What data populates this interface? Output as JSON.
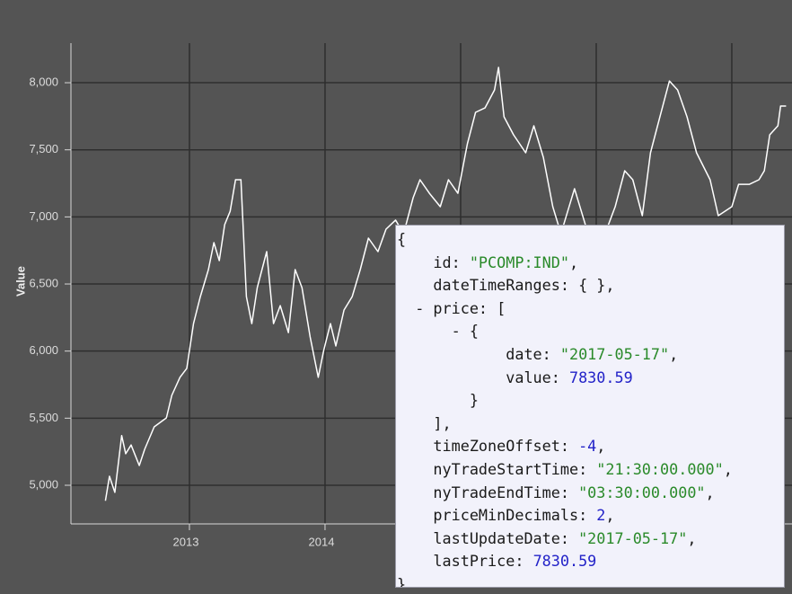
{
  "chart_data": {
    "type": "line",
    "y_label": "Value",
    "x": [
      2012.38,
      2012.41,
      2012.45,
      2012.5,
      2012.53,
      2012.57,
      2012.63,
      2012.67,
      2012.74,
      2012.83,
      2012.87,
      2012.93,
      2012.98,
      2013.03,
      2013.08,
      2013.14,
      2013.18,
      2013.22,
      2013.26,
      2013.3,
      2013.34,
      2013.38,
      2013.42,
      2013.46,
      2013.5,
      2013.57,
      2013.62,
      2013.67,
      2013.73,
      2013.78,
      2013.83,
      2013.89,
      2013.95,
      2013.99,
      2014.04,
      2014.08,
      2014.14,
      2014.2,
      2014.26,
      2014.32,
      2014.39,
      2014.45,
      2014.52,
      2014.58,
      2014.65,
      2014.7,
      2014.77,
      2014.85,
      2014.91,
      2014.98,
      2015.05,
      2015.11,
      2015.18,
      2015.25,
      2015.28,
      2015.32,
      2015.39,
      2015.48,
      2015.54,
      2015.61,
      2015.68,
      2015.74,
      2015.84,
      2015.94,
      2016.04,
      2016.14,
      2016.21,
      2016.27,
      2016.34,
      2016.4,
      2016.47,
      2016.54,
      2016.6,
      2016.67,
      2016.74,
      2016.84,
      2016.9,
      2017.0,
      2017.05,
      2017.13,
      2017.2,
      2017.24,
      2017.28,
      2017.34,
      2017.36,
      2017.4
    ],
    "values": [
      4885,
      5067,
      4947,
      5370,
      5235,
      5300,
      5147,
      5268,
      5435,
      5502,
      5670,
      5804,
      5871,
      6205,
      6406,
      6607,
      6808,
      6674,
      6942,
      7042,
      7277,
      7277,
      6406,
      6205,
      6473,
      6741,
      6205,
      6339,
      6138,
      6607,
      6473,
      6105,
      5804,
      6005,
      6205,
      6038,
      6306,
      6406,
      6607,
      6842,
      6741,
      6909,
      6976,
      6875,
      7143,
      7277,
      7176,
      7076,
      7277,
      7176,
      7545,
      7779,
      7812,
      7946,
      8114,
      7746,
      7612,
      7478,
      7679,
      7444,
      7076,
      6875,
      7210,
      6875,
      6808,
      7076,
      7344,
      7277,
      7009,
      7478,
      7746,
      8013,
      7946,
      7746,
      7478,
      7277,
      7009,
      7076,
      7243,
      7243,
      7277,
      7344,
      7612,
      7679,
      7826,
      7826
    ],
    "color": "#ffffff",
    "xlim": [
      2012.126,
      2017.444
    ],
    "xticks": [
      2013,
      2014,
      2015,
      2016,
      2017
    ],
    "ylim": [
      4712,
      8295
    ],
    "yticks": [
      {
        "value": 5000,
        "label": "5,000"
      },
      {
        "value": 5500,
        "label": "5,500"
      },
      {
        "value": 6000,
        "label": "6,000"
      },
      {
        "value": 6500,
        "label": "6,500"
      },
      {
        "value": 7000,
        "label": "7,000"
      },
      {
        "value": 7500,
        "label": "7,500"
      },
      {
        "value": 8000,
        "label": "8,000"
      }
    ],
    "grid": true
  },
  "popup": {
    "lines": [
      [
        "{"
      ],
      [
        "    id: ",
        "\"PCOMP:IND\"",
        ","
      ],
      [
        "    dateTimeRanges: { },"
      ],
      [
        "  - price: ["
      ],
      [
        "      - {"
      ],
      [
        "            date: ",
        "\"2017-05-17\"",
        ","
      ],
      [
        "            value: ",
        7830.59
      ],
      [
        "        }"
      ],
      [
        "    ],"
      ],
      [
        "    timeZoneOffset: ",
        -4,
        ","
      ],
      [
        "    nyTradeStartTime: ",
        "\"21:30:00.000\"",
        ","
      ],
      [
        "    nyTradeEndTime: ",
        "\"03:30:00.000\"",
        ","
      ],
      [
        "    priceMinDecimals: ",
        2,
        ","
      ],
      [
        "    lastUpdateDate: ",
        "\"2017-05-17\"",
        ","
      ],
      [
        "    lastPrice: ",
        7830.59
      ],
      [
        "}"
      ]
    ]
  }
}
